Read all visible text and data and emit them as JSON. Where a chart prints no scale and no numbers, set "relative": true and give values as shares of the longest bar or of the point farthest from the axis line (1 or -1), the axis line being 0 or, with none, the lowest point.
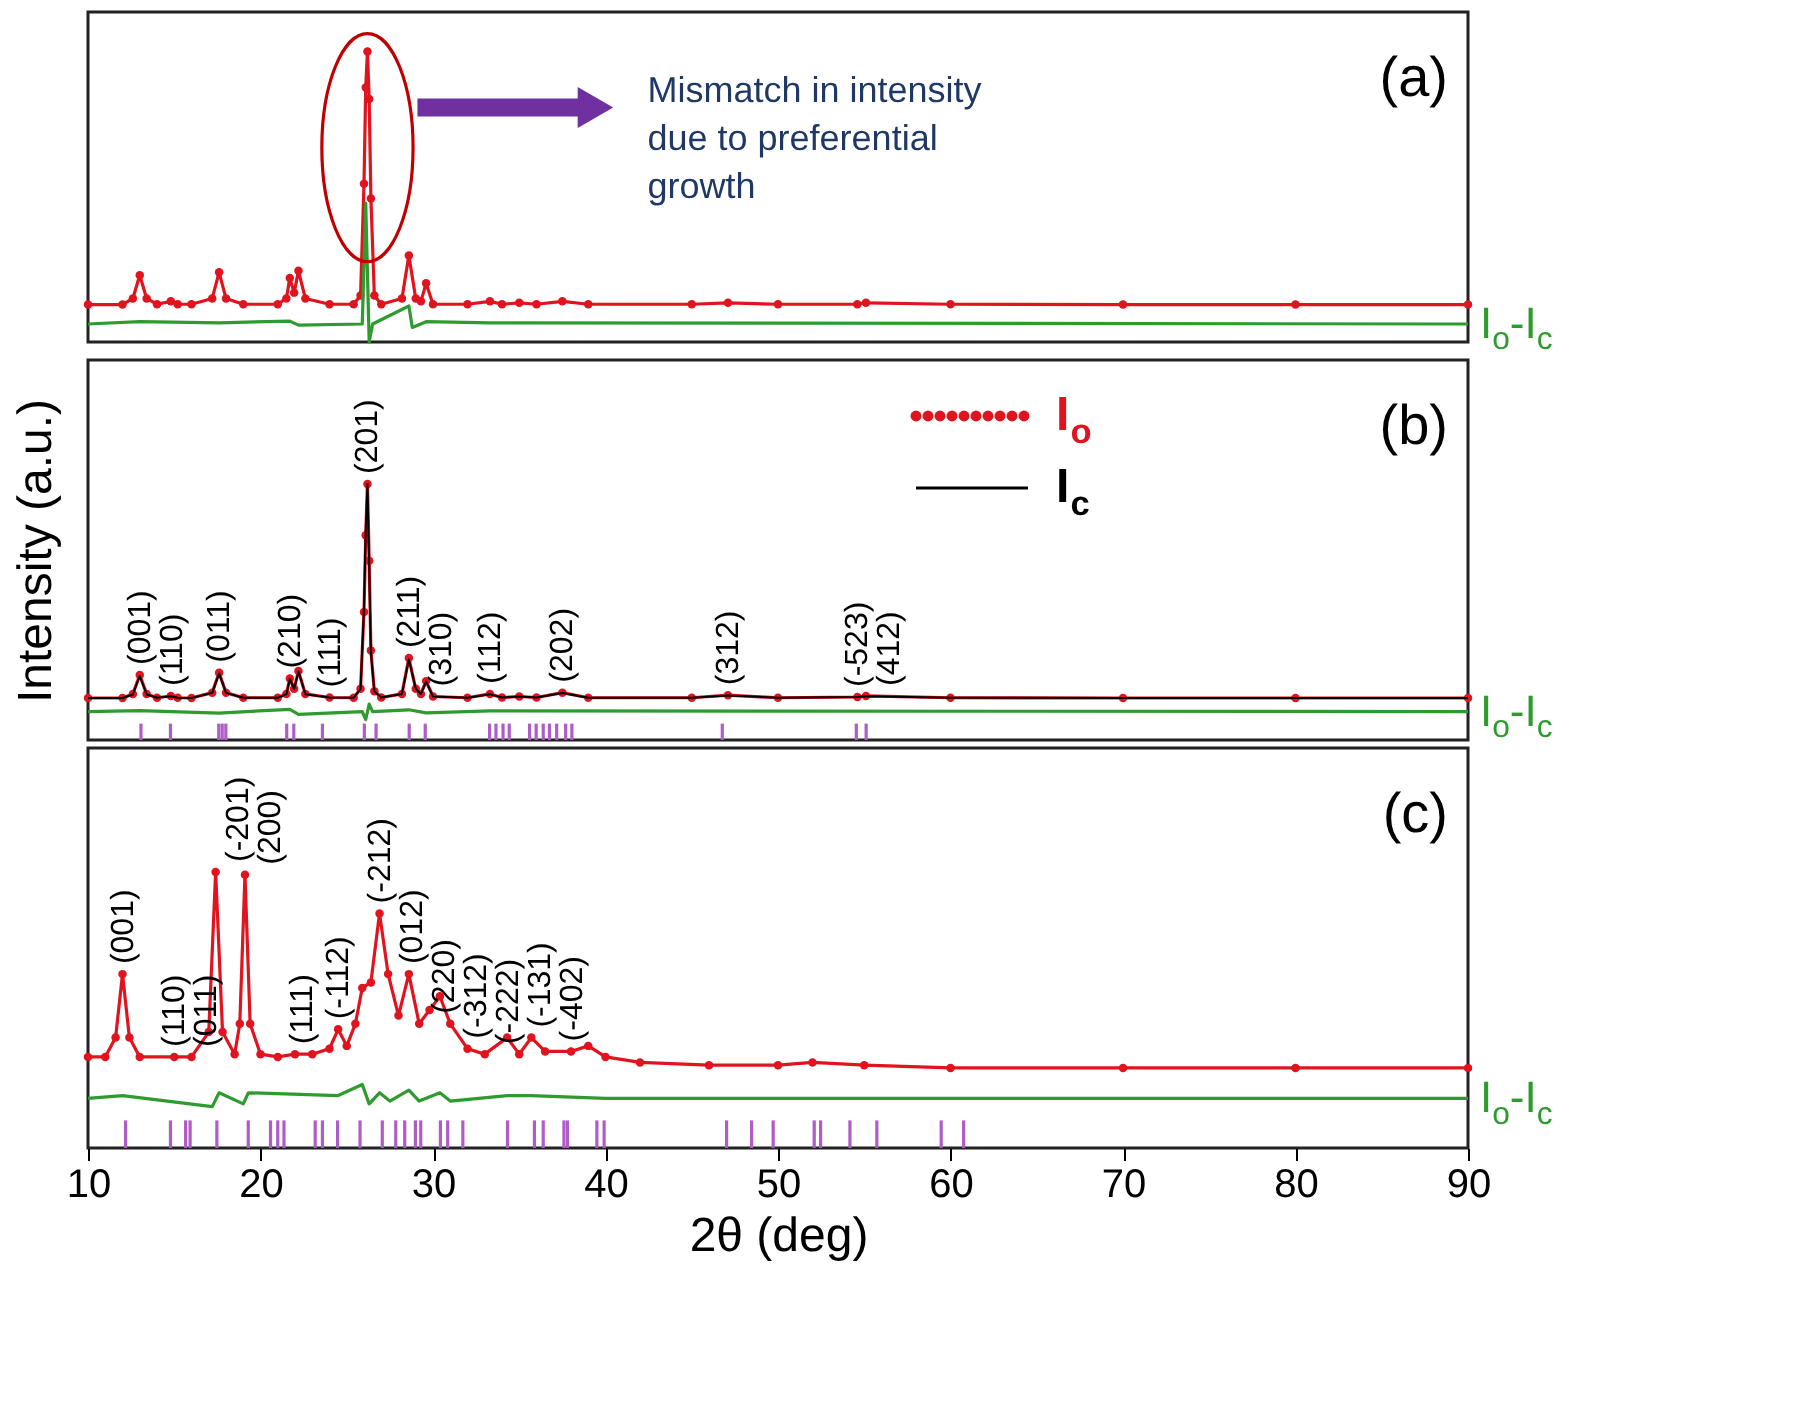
{
  "chart_data": [
    {
      "type": "line",
      "relative": true,
      "xlim": [
        10,
        90
      ],
      "xticks": [
        10,
        20,
        30,
        40,
        50,
        60,
        70,
        80,
        90
      ],
      "tick_labels": false,
      "x": [
        10,
        12,
        12.6,
        13.0,
        13.4,
        14,
        14.8,
        15.2,
        16,
        17.2,
        17.6,
        18.0,
        19,
        21.0,
        21.5,
        21.7,
        21.95,
        22.2,
        22.6,
        24,
        25.4,
        25.8,
        26.0,
        26.1,
        26.2,
        26.3,
        26.4,
        26.6,
        27,
        28.2,
        28.6,
        29.0,
        29.3,
        29.6,
        30.0,
        32,
        33.3,
        34,
        35,
        36,
        37.5,
        39,
        45,
        47.1,
        50,
        54.6,
        55.1,
        60,
        70,
        80,
        90
      ],
      "series": [
        {
          "color": "#e0141e",
          "marker": "circle",
          "values": [
            0.129,
            0.129,
            0.15,
            0.23,
            0.15,
            0.13,
            0.14,
            0.13,
            0.13,
            0.15,
            0.24,
            0.15,
            0.13,
            0.13,
            0.15,
            0.22,
            0.17,
            0.245,
            0.15,
            0.13,
            0.13,
            0.16,
            0.545,
            0.876,
            1.0,
            0.837,
            0.494,
            0.16,
            0.13,
            0.15,
            0.298,
            0.15,
            0.14,
            0.202,
            0.13,
            0.13,
            0.14,
            0.13,
            0.135,
            0.13,
            0.14,
            0.13,
            0.13,
            0.135,
            0.13,
            0.13,
            0.135,
            0.13,
            0.129,
            0.129,
            0.129
          ]
        },
        {
          "name": "I$_{o}$-I$_{c}$",
          "color": "#2e9b2e",
          "x": [
            10,
            13,
            17.6,
            21.7,
            22.2,
            25.9,
            26.1,
            26.3,
            26.5,
            28.6,
            28.8,
            29.6,
            33.3,
            90
          ],
          "values": [
            0.062,
            0.07,
            0.066,
            0.072,
            0.058,
            0.062,
            0.478,
            0.0,
            0.062,
            0.124,
            0.05,
            0.07,
            0.066,
            0.062
          ]
        }
      ],
      "annotations": [
        "(a)",
        "Mismatch in intensity due to preferential growth"
      ]
    },
    {
      "type": "line",
      "relative": true,
      "xlim": [
        10,
        90
      ],
      "xticks": [
        10,
        20,
        30,
        40,
        50,
        60,
        70,
        80,
        90
      ],
      "tick_labels": false,
      "legend": "top right",
      "ylabel": "Intensity (a.u.)",
      "x": [
        10,
        12,
        12.6,
        13.0,
        13.4,
        14,
        14.8,
        15.2,
        16,
        17.2,
        17.6,
        18.0,
        19,
        21.0,
        21.5,
        21.7,
        21.95,
        22.2,
        22.6,
        24,
        25.4,
        25.8,
        26.0,
        26.1,
        26.2,
        26.3,
        26.4,
        26.6,
        27,
        28.2,
        28.6,
        29.0,
        29.3,
        29.6,
        30.0,
        32,
        33.3,
        34,
        35,
        36,
        37.5,
        39,
        45,
        47.1,
        50,
        54.6,
        55.1,
        60,
        70,
        80,
        90
      ],
      "series": [
        {
          "name": "I$_{o}$",
          "color": "#e0141e",
          "marker": "circle",
          "values": [
            0.164,
            0.164,
            0.18,
            0.254,
            0.18,
            0.165,
            0.172,
            0.165,
            0.164,
            0.185,
            0.263,
            0.185,
            0.165,
            0.165,
            0.18,
            0.24,
            0.2,
            0.27,
            0.18,
            0.166,
            0.165,
            0.2,
            0.5,
            0.8,
            1.0,
            0.7,
            0.35,
            0.19,
            0.166,
            0.18,
            0.32,
            0.2,
            0.18,
            0.23,
            0.17,
            0.165,
            0.18,
            0.166,
            0.17,
            0.166,
            0.185,
            0.165,
            0.165,
            0.175,
            0.165,
            0.168,
            0.172,
            0.165,
            0.164,
            0.164,
            0.164
          ]
        },
        {
          "name": "I$_{c}$",
          "color": "#000000",
          "values": [
            0.164,
            0.164,
            0.178,
            0.25,
            0.178,
            0.165,
            0.171,
            0.165,
            0.164,
            0.184,
            0.26,
            0.184,
            0.165,
            0.165,
            0.179,
            0.238,
            0.2,
            0.268,
            0.179,
            0.166,
            0.165,
            0.2,
            0.52,
            0.82,
            1.0,
            0.68,
            0.34,
            0.19,
            0.166,
            0.18,
            0.315,
            0.2,
            0.18,
            0.228,
            0.17,
            0.165,
            0.179,
            0.166,
            0.17,
            0.166,
            0.184,
            0.165,
            0.165,
            0.174,
            0.165,
            0.168,
            0.171,
            0.165,
            0.164,
            0.164,
            0.164
          ]
        },
        {
          "name": "I$_{o}$-I$_{c}$",
          "color": "#2e9b2e",
          "x": [
            10,
            13,
            17.6,
            21.7,
            22.2,
            25.9,
            26.1,
            26.3,
            26.5,
            28.6,
            29.6,
            33.3,
            90
          ],
          "values": [
            0.111,
            0.115,
            0.105,
            0.12,
            0.1,
            0.111,
            0.08,
            0.14,
            0.111,
            0.118,
            0.106,
            0.114,
            0.111
          ]
        },
        {
          "type": "bar",
          "color": "#b05cc8",
          "x": [
            13.07,
            14.78,
            17.58,
            17.78,
            17.99,
            21.52,
            21.93,
            23.59,
            26.02,
            26.7,
            28.62,
            29.55,
            33.28,
            33.65,
            34.06,
            34.42,
            35.6,
            35.98,
            36.39,
            36.75,
            37.17,
            37.69,
            38.05,
            46.77,
            54.54,
            55.11
          ],
          "values": [
            0.064,
            0.064,
            0.064,
            0.064,
            0.064,
            0.064,
            0.064,
            0.064,
            0.064,
            0.064,
            0.064,
            0.064,
            0.064,
            0.064,
            0.064,
            0.064,
            0.064,
            0.064,
            0.064,
            0.064,
            0.064,
            0.064,
            0.064,
            0.064,
            0.064,
            0.064
          ]
        }
      ],
      "annotations": [
        "(b)",
        {
          "text": "(001)",
          "x": 13.0,
          "y": 0.254
        },
        {
          "text": "(110)",
          "x": 14.8,
          "y": 0.172
        },
        {
          "text": "(011)",
          "x": 17.6,
          "y": 0.263
        },
        {
          "text": "(210)",
          "x": 21.7,
          "y": 0.24
        },
        {
          "text": "(111)",
          "x": 24,
          "y": 0.166
        },
        {
          "text": "(201)",
          "x": 26.2,
          "y": 1.0
        },
        {
          "text": "(211)",
          "x": 28.6,
          "y": 0.32
        },
        {
          "text": "(310)",
          "x": 30.0,
          "y": 0.17
        },
        {
          "text": "(112)",
          "x": 33.3,
          "y": 0.18
        },
        {
          "text": "(202)",
          "x": 37.5,
          "y": 0.185
        },
        {
          "text": "(312)",
          "x": 47.1,
          "y": 0.175
        },
        {
          "text": "(-523)",
          "x": 54.6,
          "y": 0.168
        },
        {
          "text": "(412)",
          "x": 55.1,
          "y": 0.172
        }
      ]
    },
    {
      "type": "line",
      "relative": true,
      "xlim": [
        10,
        90
      ],
      "xticks": [
        10,
        20,
        30,
        40,
        50,
        60,
        70,
        80,
        90
      ],
      "xlabel": "2θ (deg)",
      "series": [
        {
          "color": "#e0141e",
          "marker": "circle",
          "x": [
            10,
            11,
            11.6,
            12.0,
            12.4,
            13,
            15,
            16,
            17.0,
            17.4,
            17.8,
            18.5,
            18.8,
            19.1,
            19.4,
            20,
            21,
            22,
            23,
            24.0,
            24.5,
            25.0,
            25.5,
            25.9,
            26.4,
            26.9,
            27.4,
            28.0,
            28.6,
            29.2,
            29.8,
            30.4,
            31.0,
            32,
            33,
            34.3,
            35,
            35.7,
            36.5,
            38,
            39,
            40,
            42,
            46,
            50,
            52,
            55,
            60,
            70,
            80,
            90
          ],
          "values": [
            0.33,
            0.33,
            0.4,
            0.63,
            0.4,
            0.33,
            0.33,
            0.33,
            0.42,
            1.0,
            0.42,
            0.34,
            0.45,
            0.99,
            0.45,
            0.34,
            0.33,
            0.34,
            0.34,
            0.36,
            0.43,
            0.37,
            0.45,
            0.58,
            0.6,
            0.85,
            0.63,
            0.48,
            0.63,
            0.45,
            0.5,
            0.55,
            0.45,
            0.36,
            0.34,
            0.4,
            0.34,
            0.4,
            0.35,
            0.35,
            0.37,
            0.33,
            0.31,
            0.3,
            0.3,
            0.31,
            0.3,
            0.29,
            0.29,
            0.29,
            0.29
          ]
        },
        {
          "name": "I$_{o}$-I$_{c}$",
          "color": "#2e9b2e",
          "x": [
            10,
            12,
            17.2,
            17.6,
            19,
            19.3,
            24.5,
            25.9,
            26.3,
            26.9,
            27.5,
            28.6,
            29.2,
            30.4,
            31,
            34.3,
            35.7,
            40,
            90
          ],
          "values": [
            0.18,
            0.19,
            0.15,
            0.2,
            0.16,
            0.2,
            0.19,
            0.23,
            0.16,
            0.2,
            0.17,
            0.21,
            0.17,
            0.2,
            0.17,
            0.19,
            0.19,
            0.18,
            0.18
          ]
        },
        {
          "type": "bar",
          "color": "#b05cc8",
          "x": [
            12.18,
            14.78,
            15.66,
            15.92,
            17.47,
            19.29,
            20.58,
            21.0,
            21.36,
            23.17,
            23.59,
            24.47,
            25.77,
            27.06,
            27.84,
            28.36,
            28.98,
            29.29,
            30.43,
            30.85,
            31.73,
            34.32,
            35.88,
            36.39,
            37.59,
            37.79,
            39.5,
            39.92,
            47.02,
            48.47,
            49.72,
            52.1,
            52.47,
            54.17,
            55.73,
            59.46,
            60.76
          ],
          "values": [
            0.1,
            0.1,
            0.1,
            0.1,
            0.1,
            0.1,
            0.1,
            0.1,
            0.1,
            0.1,
            0.1,
            0.1,
            0.1,
            0.1,
            0.1,
            0.1,
            0.1,
            0.1,
            0.1,
            0.1,
            0.1,
            0.1,
            0.1,
            0.1,
            0.1,
            0.1,
            0.1,
            0.1,
            0.1,
            0.1,
            0.1,
            0.1,
            0.1,
            0.1,
            0.1,
            0.1,
            0.1
          ]
        }
      ],
      "annotations": [
        "(c)",
        {
          "text": "(001)",
          "x": 12.0,
          "y": 0.63
        },
        {
          "text": "(110)",
          "x": 15,
          "y": 0.33
        },
        {
          "text": "(011)",
          "x": 16,
          "y": 0.33
        },
        {
          "text": "(-201)",
          "x": 17.4,
          "y": 1.0
        },
        {
          "text": "(200)",
          "x": 19.1,
          "y": 0.99
        },
        {
          "text": "(111)",
          "x": 22,
          "y": 0.34
        },
        {
          "text": "(-112)",
          "x": 24.5,
          "y": 0.43
        },
        {
          "text": "(-212)",
          "x": 26.9,
          "y": 0.85
        },
        {
          "text": "(012)",
          "x": 28.6,
          "y": 0.63
        },
        {
          "text": "(220)",
          "x": 29.2,
          "y": 0.45
        },
        {
          "text": "(-312)",
          "x": 32,
          "y": 0.36
        },
        {
          "text": "(-222)",
          "x": 33,
          "y": 0.34
        },
        {
          "text": "(-131)",
          "x": 35.7,
          "y": 0.4
        },
        {
          "text": "(-402)",
          "x": 38,
          "y": 0.35
        }
      ]
    }
  ]
}
